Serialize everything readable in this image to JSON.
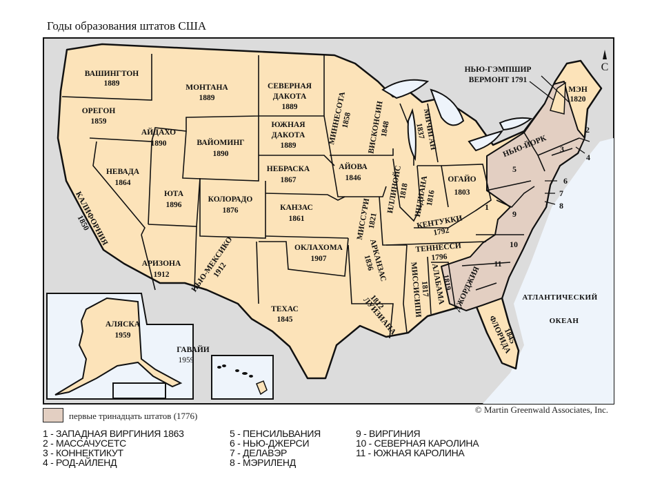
{
  "title": "Годы образования штатов США",
  "colors": {
    "land": "#fce3b9",
    "original_states": "#e3cfc2",
    "background": "#dcdcdc",
    "water": "#eef4fb",
    "border": "#111111"
  },
  "north_arrow": {
    "icon": "north-arrow-icon",
    "label": "С"
  },
  "states": {
    "washington": [
      "ВАШИНГТОН",
      "1889"
    ],
    "montana": [
      "МОНТАНА",
      "1889"
    ],
    "north_dakota": [
      "СЕВЕРНАЯ",
      "ДАКОТА",
      "1889"
    ],
    "minnesota": [
      "МИННЕСОТА",
      "1858"
    ],
    "oregon": [
      "ОРЕГОН",
      "1859"
    ],
    "idaho": [
      "АЙДАХО",
      "1890"
    ],
    "wyoming": [
      "ВАЙОМИНГ",
      "1890"
    ],
    "south_dakota": [
      "ЮЖНАЯ",
      "ДАКОТА",
      "1889"
    ],
    "wisconsin": [
      "ВИСКОНСИН",
      "1848"
    ],
    "michigan": [
      "МИЧИГАН",
      "1837"
    ],
    "nevada": [
      "НЕВАДА",
      "1864"
    ],
    "utah": [
      "ЮТА",
      "1896"
    ],
    "colorado": [
      "КОЛОРАДО",
      "1876"
    ],
    "nebraska": [
      "НЕБРАСКА",
      "1867"
    ],
    "iowa": [
      "АЙОВА",
      "1846"
    ],
    "illinois": [
      "ИЛЛИНОЙС",
      "1818"
    ],
    "indiana": [
      "ИНДИАНА",
      "1816"
    ],
    "ohio": [
      "ОГАЙО",
      "1803"
    ],
    "kansas": [
      "КАНЗАС",
      "1861"
    ],
    "missouri": [
      "МИССУРИ",
      "1821"
    ],
    "california": [
      "КАЛИФОРНИЯ",
      "1850"
    ],
    "kentucky": [
      "КЕНТУККИ",
      "1792"
    ],
    "tennessee": [
      "ТЕННЕССИ",
      "1796"
    ],
    "arizona": [
      "АРИЗОНА",
      "1912"
    ],
    "new_mexico": [
      "НЬЮ-МЕКСИКО",
      "1912"
    ],
    "oklahoma": [
      "ОКЛАХОМА",
      "1907"
    ],
    "arkansas": [
      "АРКАНЗАС",
      "1836"
    ],
    "mississippi": [
      "МИССИСИПИ",
      "1817"
    ],
    "alabama": [
      "АЛАБАМА",
      "1819"
    ],
    "georgia": [
      "ДЖОРДЖИЯ"
    ],
    "texas": [
      "ТЕХАС",
      "1845"
    ],
    "louisiana": [
      "ЛУИЗИАНА",
      "1812"
    ],
    "florida": [
      "ФЛОРИДА",
      "1845"
    ],
    "new_york": [
      "НЬЮ-ЙОРК"
    ],
    "maine": [
      "МЭН",
      "1820"
    ],
    "new_hampshire_vermont": [
      "НЬЮ-ГЭМПШИР",
      "ВЕРМОНТ 1791"
    ],
    "alaska": [
      "АЛЯСКА",
      "1959"
    ],
    "hawaii": [
      "ГАВАЙИ",
      "1959"
    ]
  },
  "ocean": [
    "АТЛАНТИЧЕСКИЙ",
    "ОКЕАН"
  ],
  "numbers": [
    "1",
    "2",
    "3",
    "4",
    "5",
    "6",
    "7",
    "8",
    "9",
    "10",
    "11"
  ],
  "legend": {
    "swatch_label": "первые тринадцать штатов (1776)",
    "copyright": "© Martin Greenwald Associates, Inc.",
    "columns": [
      [
        "1 - ЗАПАДНАЯ ВИРГИНИЯ 1863",
        "2 - МАССАЧУСЕТС",
        "3 - КОННЕКТИКУТ",
        "4  - РОД-АЙЛЕНД"
      ],
      [
        "5 - ПЕНСИЛЬВАНИЯ",
        "6 - НЬЮ-ДЖЕРСИ",
        "7 - ДЕЛАВЭР",
        "8 - МЭРИЛЕНД"
      ],
      [
        "9 - ВИРГИНИЯ",
        "10 - СЕВЕРНАЯ КАРОЛИНА",
        "11 - ЮЖНАЯ КАРОЛИНА"
      ]
    ]
  }
}
